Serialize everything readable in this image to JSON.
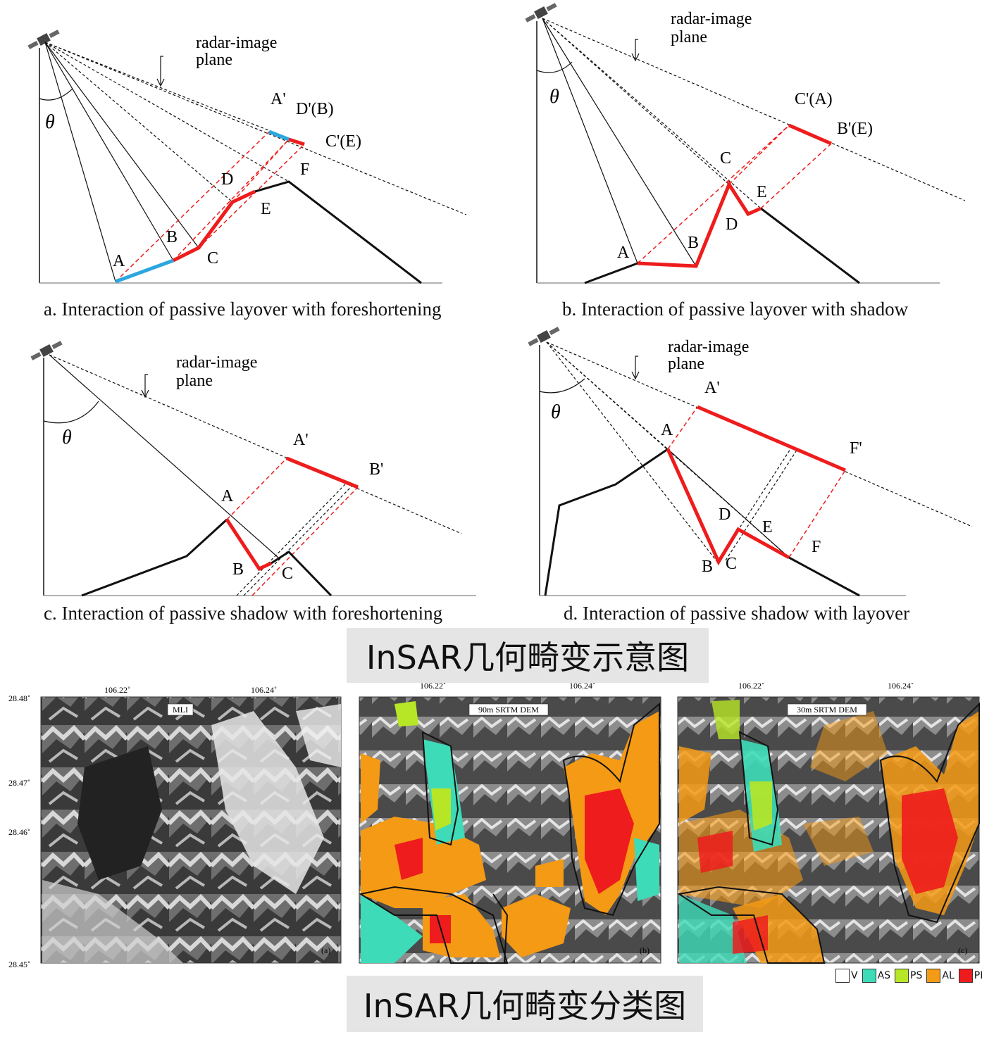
{
  "diagrams": {
    "a": {
      "caption": "a. Interaction of passive layover with foreshortening",
      "plane_label_1": "radar-image",
      "plane_label_2": "plane",
      "theta": "θ",
      "points": {
        "A": "A",
        "B": "B",
        "C": "C",
        "D": "D",
        "E": "E",
        "F": "F"
      },
      "projections": {
        "a1": "A'",
        "d1": "D'(B)",
        "c1": "C'(E)"
      }
    },
    "b": {
      "caption": "b. Interaction of passive layover with shadow",
      "plane_label_1": "radar-image",
      "plane_label_2": "plane",
      "theta": "θ",
      "points": {
        "A": "A",
        "B": "B",
        "C": "C",
        "D": "D",
        "E": "E"
      },
      "projections": {
        "c1": "C'(A)",
        "b1": "B'(E)"
      }
    },
    "c": {
      "caption": "c. Interaction of passive shadow with foreshortening",
      "plane_label_1": "radar-image",
      "plane_label_2": "plane",
      "theta": "θ",
      "points": {
        "A": "A",
        "B": "B",
        "C": "C"
      },
      "projections": {
        "a1": "A'",
        "b1": "B'"
      }
    },
    "d": {
      "caption": "d. Interaction of passive shadow with layover",
      "plane_label_1": "radar-image",
      "plane_label_2": "plane",
      "theta": "θ",
      "points": {
        "A": "A",
        "B": "B",
        "C": "C",
        "D": "D",
        "E": "E",
        "F": "F"
      },
      "projections": {
        "a1": "A'",
        "f1": "F'"
      }
    }
  },
  "banner_top": "InSAR几何畸变示意图",
  "banner_bottom": "InSAR几何畸变分类图",
  "maps": {
    "lon_labels": [
      "106.22˚",
      "106.24˚"
    ],
    "lat_labels": [
      "28.48˚",
      "28.47˚",
      "28.46˚",
      "28.45˚"
    ],
    "panels": [
      {
        "title": "MLI",
        "tag": "(a)"
      },
      {
        "title": "90m SRTM DEM",
        "tag": "(b)"
      },
      {
        "title": "30m SRTM DEM",
        "tag": "(c)"
      }
    ]
  },
  "legend": [
    {
      "label": "V",
      "color": "#ffffff"
    },
    {
      "label": "AS",
      "color": "#3ddbb8"
    },
    {
      "label": "PS",
      "color": "#b7e626"
    },
    {
      "label": "AL",
      "color": "#f59a14"
    },
    {
      "label": "PL",
      "color": "#ee1c1c"
    }
  ],
  "colors": {
    "red": "#ee1c1c",
    "blue": "#2aa7e0",
    "terrain": "#111111"
  }
}
